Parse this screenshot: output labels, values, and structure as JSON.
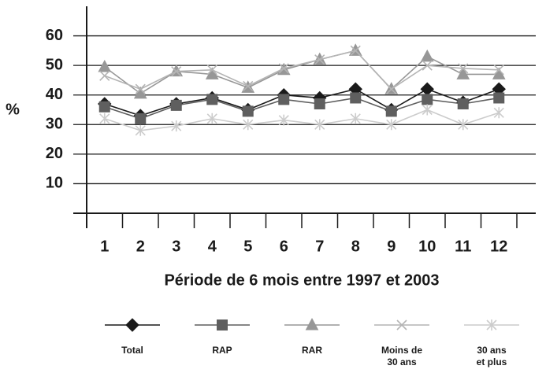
{
  "chart_data": {
    "type": "line",
    "x_label": "Période de 6 mois entre 1997 et 2003",
    "y_label": "%",
    "categories": [
      "1",
      "2",
      "3",
      "4",
      "5",
      "6",
      "7",
      "8",
      "9",
      "10",
      "11",
      "12"
    ],
    "ylim": [
      0,
      70
    ],
    "yticks": [
      10,
      20,
      30,
      40,
      50,
      60
    ],
    "grid": true,
    "series": [
      {
        "name": "Total",
        "color": "#1a1a1a",
        "marker": "diamond",
        "values": [
          37,
          33,
          37,
          39,
          35,
          40,
          39,
          42,
          35,
          42,
          37.5,
          42
        ]
      },
      {
        "name": "RAP",
        "color": "#5f5f5f",
        "marker": "square",
        "values": [
          36,
          32,
          36.5,
          38.5,
          34.5,
          38.5,
          37,
          39,
          34.5,
          38.5,
          37,
          39
        ]
      },
      {
        "name": "RAR",
        "color": "#979797",
        "marker": "triangle",
        "values": [
          49.5,
          40.5,
          48,
          47,
          42.5,
          48.5,
          52,
          55,
          42,
          53,
          47,
          47
        ]
      },
      {
        "name": "Moins de\n30 ans",
        "color": "#b4b4b4",
        "marker": "x",
        "values": [
          46.5,
          42,
          48,
          48.5,
          43,
          49,
          52,
          55,
          42,
          50,
          49,
          48.5
        ]
      },
      {
        "name": "30 ans\net plus",
        "color": "#cccccc",
        "marker": "asterisk",
        "values": [
          32,
          28,
          29.5,
          32,
          30,
          31.5,
          30,
          32,
          30,
          35,
          30,
          34
        ]
      }
    ]
  }
}
